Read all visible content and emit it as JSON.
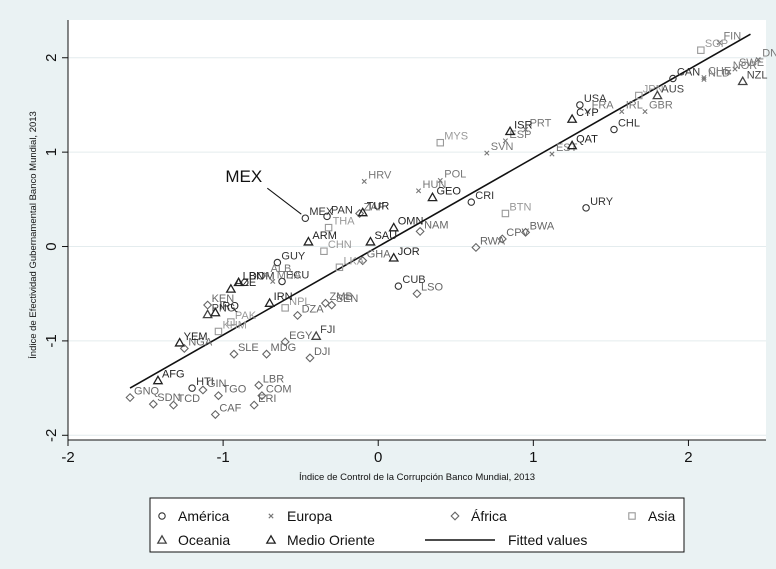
{
  "chart_data": {
    "type": "scatter",
    "title": "",
    "xlabel": "Índice de Control de la Corrupción Banco Mundial, 2013",
    "ylabel": "Índice de Efectividad Gubernamental Banco Mundial, 2013",
    "xlim": [
      -2.0,
      2.5
    ],
    "ylim": [
      -2.05,
      2.4
    ],
    "xticks": [
      "-2",
      "-1",
      "0",
      "1",
      "2"
    ],
    "yticks": [
      "-2",
      "-1",
      "0",
      "1",
      "2"
    ],
    "grid": true,
    "legend_position": "bottom",
    "callout": {
      "label": "MEX",
      "x": -0.47,
      "y": 0.3
    },
    "fitted_line": {
      "name": "Fitted values",
      "x": [
        -1.6,
        2.4
      ],
      "y": [
        -1.5,
        2.25
      ]
    },
    "legend": [
      {
        "name": "América",
        "marker": "circle"
      },
      {
        "name": "Europa",
        "marker": "x"
      },
      {
        "name": "África",
        "marker": "diamond"
      },
      {
        "name": "Asia",
        "marker": "square"
      },
      {
        "name": "Oceania",
        "marker": "triangle"
      },
      {
        "name": "Medio Oriente",
        "marker": "triangle"
      },
      {
        "name": "Fitted values",
        "marker": "line"
      }
    ],
    "series": [
      {
        "name": "América",
        "marker": "circle",
        "color": "#333333",
        "points": [
          {
            "label": "CAN",
            "x": 1.9,
            "y": 1.78
          },
          {
            "label": "USA",
            "x": 1.3,
            "y": 1.5
          },
          {
            "label": "CHL",
            "x": 1.52,
            "y": 1.24
          },
          {
            "label": "URY",
            "x": 1.34,
            "y": 0.41
          },
          {
            "label": "MEX",
            "x": -0.47,
            "y": 0.3
          },
          {
            "label": "PAN",
            "x": -0.33,
            "y": 0.32
          },
          {
            "label": "CRI",
            "x": 0.6,
            "y": 0.47
          },
          {
            "label": "CUB",
            "x": 0.13,
            "y": -0.42
          },
          {
            "label": "GUY",
            "x": -0.65,
            "y": -0.17
          },
          {
            "label": "DOM",
            "x": -0.86,
            "y": -0.38
          },
          {
            "label": "ECU",
            "x": -0.62,
            "y": -0.37
          },
          {
            "label": "HTI",
            "x": -1.2,
            "y": -1.5
          }
        ]
      },
      {
        "name": "Europa",
        "marker": "x",
        "color": "#777777",
        "points": [
          {
            "label": "FIN",
            "x": 2.2,
            "y": 2.16
          },
          {
            "label": "DNK",
            "x": 2.45,
            "y": 1.98
          },
          {
            "label": "SWE",
            "x": 2.3,
            "y": 1.88
          },
          {
            "label": "NOR",
            "x": 2.26,
            "y": 1.85
          },
          {
            "label": "CHE",
            "x": 2.1,
            "y": 1.79
          },
          {
            "label": "NLD",
            "x": 2.1,
            "y": 1.77
          },
          {
            "label": "FRA",
            "x": 1.35,
            "y": 1.43
          },
          {
            "label": "GBR",
            "x": 1.72,
            "y": 1.43
          },
          {
            "label": "IRL",
            "x": 1.57,
            "y": 1.43
          },
          {
            "label": "ESP",
            "x": 0.82,
            "y": 1.12
          },
          {
            "label": "PRT",
            "x": 0.95,
            "y": 1.24
          },
          {
            "label": "EST",
            "x": 1.12,
            "y": 0.98
          },
          {
            "label": "SVN",
            "x": 0.7,
            "y": 0.99
          },
          {
            "label": "POL",
            "x": 0.4,
            "y": 0.7
          },
          {
            "label": "HRV",
            "x": -0.09,
            "y": 0.69
          },
          {
            "label": "HUN",
            "x": 0.26,
            "y": 0.59
          },
          {
            "label": "MDA",
            "x": -0.68,
            "y": -0.37
          },
          {
            "label": "ALB",
            "x": -0.72,
            "y": -0.3
          }
        ]
      },
      {
        "name": "África",
        "marker": "diamond",
        "color": "#666666",
        "points": [
          {
            "label": "BWA",
            "x": 0.95,
            "y": 0.15
          },
          {
            "label": "CPV",
            "x": 0.8,
            "y": 0.08
          },
          {
            "label": "RWA",
            "x": 0.63,
            "y": -0.01
          },
          {
            "label": "NAM",
            "x": 0.27,
            "y": 0.16
          },
          {
            "label": "ZAF",
            "x": -0.12,
            "y": 0.35
          },
          {
            "label": "GHA",
            "x": -0.1,
            "y": -0.15
          },
          {
            "label": "LSO",
            "x": 0.25,
            "y": -0.5
          },
          {
            "label": "ZMB",
            "x": -0.34,
            "y": -0.6
          },
          {
            "label": "SEN",
            "x": -0.3,
            "y": -0.62
          },
          {
            "label": "DZA",
            "x": -0.52,
            "y": -0.73
          },
          {
            "label": "EGY",
            "x": -0.6,
            "y": -1.01
          },
          {
            "label": "SLE",
            "x": -0.93,
            "y": -1.14
          },
          {
            "label": "MDG",
            "x": -0.72,
            "y": -1.14
          },
          {
            "label": "DJI",
            "x": -0.44,
            "y": -1.18
          },
          {
            "label": "LBR",
            "x": -0.77,
            "y": -1.47
          },
          {
            "label": "COM",
            "x": -0.75,
            "y": -1.58
          },
          {
            "label": "ERI",
            "x": -0.8,
            "y": -1.68
          },
          {
            "label": "CAF",
            "x": -1.05,
            "y": -1.78
          },
          {
            "label": "TGO",
            "x": -1.03,
            "y": -1.58
          },
          {
            "label": "GIN",
            "x": -1.13,
            "y": -1.52
          },
          {
            "label": "TCD",
            "x": -1.32,
            "y": -1.68
          },
          {
            "label": "GNQ",
            "x": -1.6,
            "y": -1.6
          },
          {
            "label": "SDN",
            "x": -1.45,
            "y": -1.67
          },
          {
            "label": "NGA",
            "x": -1.25,
            "y": -1.08
          },
          {
            "label": "KEN",
            "x": -1.1,
            "y": -0.62
          }
        ]
      },
      {
        "name": "Asia",
        "marker": "square",
        "color": "#999999",
        "points": [
          {
            "label": "SGP",
            "x": 2.08,
            "y": 2.08
          },
          {
            "label": "JPN",
            "x": 1.68,
            "y": 1.6
          },
          {
            "label": "MYS",
            "x": 0.4,
            "y": 1.1
          },
          {
            "label": "BTN",
            "x": 0.82,
            "y": 0.35
          },
          {
            "label": "CHN",
            "x": -0.35,
            "y": -0.05
          },
          {
            "label": "LKA",
            "x": -0.25,
            "y": -0.22
          },
          {
            "label": "THA",
            "x": -0.32,
            "y": 0.2
          },
          {
            "label": "KHM",
            "x": -1.03,
            "y": -0.9
          },
          {
            "label": "PAK",
            "x": -0.95,
            "y": -0.8
          },
          {
            "label": "NPL",
            "x": -0.6,
            "y": -0.65
          }
        ]
      },
      {
        "name": "Oceania",
        "marker": "triangle",
        "color": "#444444",
        "points": [
          {
            "label": "NZL",
            "x": 2.35,
            "y": 1.75
          },
          {
            "label": "AUS",
            "x": 1.8,
            "y": 1.6
          },
          {
            "label": "FJI",
            "x": -0.4,
            "y": -0.95
          },
          {
            "label": "PNG",
            "x": -1.1,
            "y": -0.72
          }
        ]
      },
      {
        "name": "Medio Oriente",
        "marker": "triangle",
        "color": "#222222",
        "points": [
          {
            "label": "ISR",
            "x": 0.85,
            "y": 1.22
          },
          {
            "label": "CYP",
            "x": 1.25,
            "y": 1.35
          },
          {
            "label": "QAT",
            "x": 1.25,
            "y": 1.07
          },
          {
            "label": "TUR",
            "x": -0.1,
            "y": 0.36
          },
          {
            "label": "OMN",
            "x": 0.1,
            "y": 0.2
          },
          {
            "label": "JOR",
            "x": 0.1,
            "y": -0.12
          },
          {
            "label": "SAU",
            "x": -0.05,
            "y": 0.05
          },
          {
            "label": "GEO",
            "x": 0.35,
            "y": 0.52
          },
          {
            "label": "ARM",
            "x": -0.45,
            "y": 0.05
          },
          {
            "label": "LBN",
            "x": -0.9,
            "y": -0.38
          },
          {
            "label": "AZE",
            "x": -0.95,
            "y": -0.45
          },
          {
            "label": "IRN",
            "x": -0.7,
            "y": -0.6
          },
          {
            "label": "AFG",
            "x": -1.42,
            "y": -1.42
          },
          {
            "label": "YEM",
            "x": -1.28,
            "y": -1.02
          },
          {
            "label": "IRQ",
            "x": -1.05,
            "y": -0.7
          }
        ]
      }
    ]
  }
}
